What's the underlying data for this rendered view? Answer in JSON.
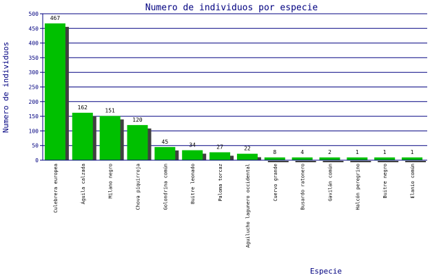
{
  "chart_data": {
    "type": "bar",
    "title": "Numero de individuos por especie",
    "xlabel": "Especie",
    "ylabel": "Numero de individuos",
    "ylim": [
      0,
      500
    ],
    "yticks": [
      0,
      50,
      100,
      150,
      200,
      250,
      300,
      350,
      400,
      450,
      500
    ],
    "grid": true,
    "categories": [
      "Culebrera europea",
      "Águila calzada",
      "Milano negro",
      "Chova piquirroja",
      "Golondrina común",
      "Buitre leonado",
      "Paloma torcaz",
      "Aguilucho lagunero occidental",
      "Cuervo grande",
      "Busardo ratonero",
      "Gavilán común",
      "Halcón peregrino",
      "Buitre negro",
      "Elanio común"
    ],
    "values": [
      467,
      162,
      151,
      120,
      45,
      34,
      27,
      22,
      8,
      4,
      2,
      1,
      1,
      1
    ],
    "value_labels": [
      "467",
      "162",
      "151",
      "120",
      "45",
      "34",
      "27",
      "22",
      "8",
      "4",
      "2",
      "1",
      "1",
      "1"
    ],
    "colors": {
      "bar": "#00c000",
      "shadow": "#404040",
      "axis": "#000080",
      "text": "#000080",
      "label": "#000000"
    }
  }
}
